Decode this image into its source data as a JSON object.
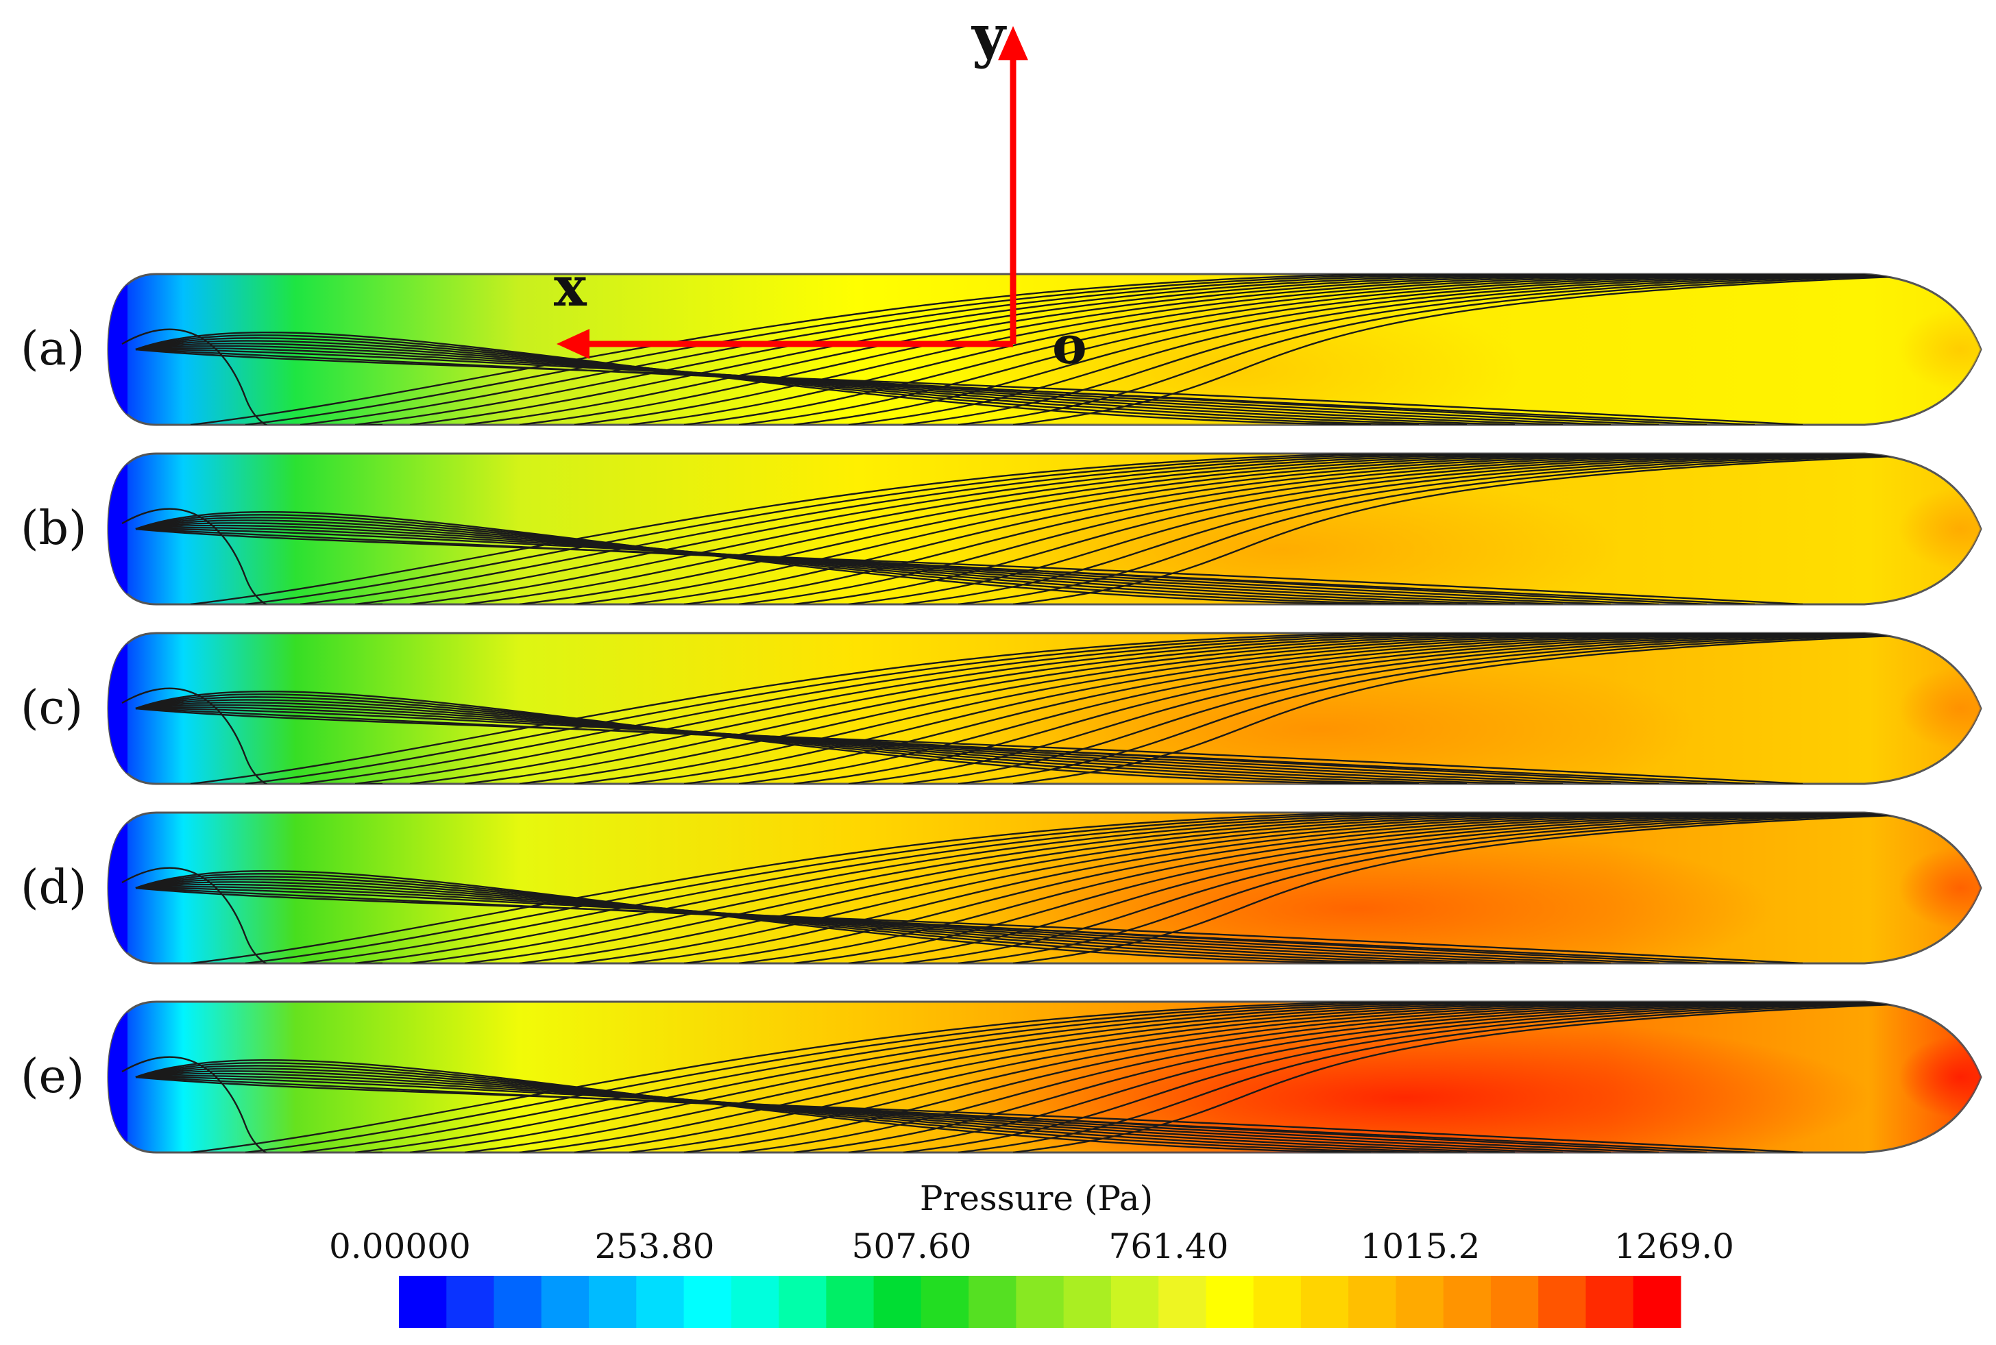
{
  "axes": {
    "y_label": "y",
    "x_label": "x",
    "origin_label": "o",
    "arrow_color": "#ff0000"
  },
  "panels": [
    {
      "label": "(a)",
      "intensity": 0.0
    },
    {
      "label": "(b)",
      "intensity": 0.28
    },
    {
      "label": "(c)",
      "intensity": 0.5
    },
    {
      "label": "(d)",
      "intensity": 0.72
    },
    {
      "label": "(e)",
      "intensity": 1.0
    }
  ],
  "colorbar": {
    "title": "Pressure (Pa)",
    "tick_labels": [
      "0.00000",
      "253.80",
      "507.60",
      "761.40",
      "1015.2",
      "1269.0"
    ],
    "colors": [
      "#0000ff",
      "#0a33ff",
      "#0066ff",
      "#0099ff",
      "#00bbff",
      "#00ddff",
      "#00ffff",
      "#00ffdd",
      "#00ffaa",
      "#00ee66",
      "#00dd33",
      "#22dd22",
      "#55e022",
      "#88e822",
      "#aaee22",
      "#ccf522",
      "#eef522",
      "#ffff00",
      "#ffe800",
      "#ffd400",
      "#ffbf00",
      "#ffaa00",
      "#ff9400",
      "#ff7f00",
      "#ff5500",
      "#ff2a00",
      "#ff0000"
    ]
  }
}
